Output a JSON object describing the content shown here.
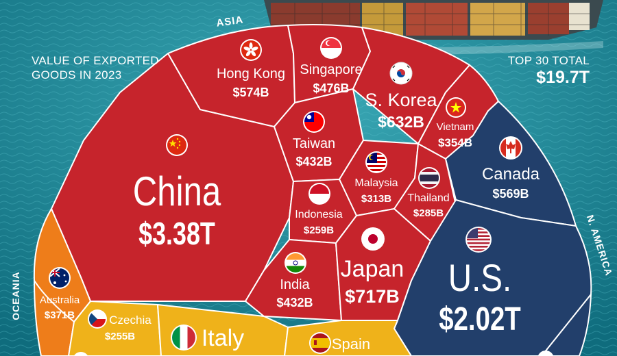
{
  "header": {
    "left_line1": "VALUE OF EXPORTED",
    "left_line2": "GOODS IN 2023",
    "right_label": "TOP 30 TOTAL",
    "right_value": "$19.7T"
  },
  "regions": {
    "asia": "ASIA",
    "north_america": "N. AMERICA",
    "oceania": "OCEANIA"
  },
  "colors": {
    "ocean": "#1f8a9a",
    "asia": "#c6242c",
    "north_america": "#223f6b",
    "oceania": "#ee7d1a",
    "europe": "#efb21a",
    "border": "#ffffff"
  },
  "countries": {
    "china": {
      "name": "China",
      "value": "$3.38T"
    },
    "hong_kong": {
      "name": "Hong Kong",
      "value": "$574B"
    },
    "singapore": {
      "name": "Singapore",
      "value": "$476B"
    },
    "s_korea": {
      "name": "S. Korea",
      "value": "$632B"
    },
    "vietnam": {
      "name": "Vietnam",
      "value": "$354B"
    },
    "taiwan": {
      "name": "Taiwan",
      "value": "$432B"
    },
    "malaysia": {
      "name": "Malaysia",
      "value": "$313B"
    },
    "thailand": {
      "name": "Thailand",
      "value": "$285B"
    },
    "indonesia": {
      "name": "Indonesia",
      "value": "$259B"
    },
    "india": {
      "name": "India",
      "value": "$432B"
    },
    "japan": {
      "name": "Japan",
      "value": "$717B"
    },
    "canada": {
      "name": "Canada",
      "value": "$569B"
    },
    "us": {
      "name": "U.S.",
      "value": "$2.02T"
    },
    "australia": {
      "name": "Australia",
      "value": "$371B"
    },
    "czechia": {
      "name": "Czechia",
      "value": "$255B"
    },
    "italy": {
      "name": "Italy",
      "value": ""
    },
    "spain": {
      "name": "Spain",
      "value": ""
    }
  }
}
